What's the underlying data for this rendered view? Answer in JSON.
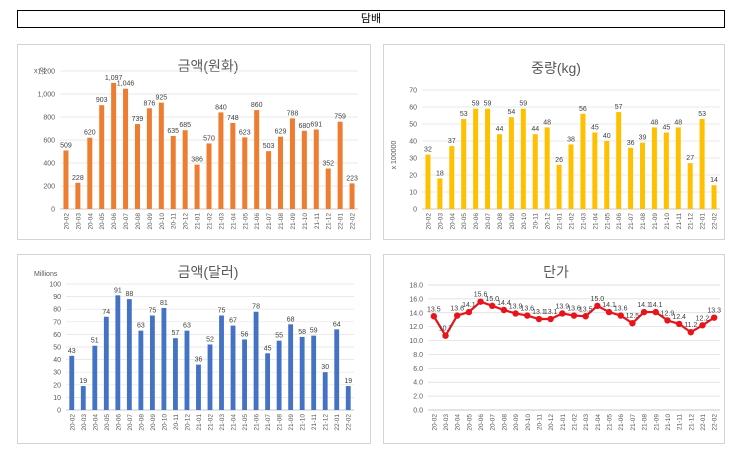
{
  "page_title": "담배",
  "categories": [
    "20-02",
    "20-03",
    "20-04",
    "20-05",
    "20-06",
    "20-07",
    "20-08",
    "20-09",
    "20-10",
    "20-11",
    "20-12",
    "21-01",
    "21-02",
    "21-03",
    "21-04",
    "21-05",
    "21-06",
    "21-07",
    "21-08",
    "21-09",
    "21-10",
    "21-11",
    "21-12",
    "22-01",
    "22-02"
  ],
  "chart_data": [
    {
      "type": "bar",
      "title": "금액(원화)",
      "unit_label": "x 억",
      "ylim": [
        0,
        1200
      ],
      "yticks": [
        "0",
        "200",
        "400",
        "600",
        "800",
        "1,000",
        "1,200"
      ],
      "color": "#ED7D31",
      "values": [
        509,
        228,
        620,
        903,
        1097,
        1046,
        739,
        876,
        925,
        635,
        685,
        386,
        570,
        840,
        748,
        623,
        860,
        503,
        629,
        788,
        680,
        691,
        352,
        759,
        223
      ],
      "data_labels": [
        "509",
        "228",
        "620",
        "903",
        "1,097",
        "1,046",
        "739",
        "876",
        "925",
        "635",
        "685",
        "386",
        "570",
        "840",
        "748",
        "623",
        "860",
        "503",
        "629",
        "788",
        "680",
        "691",
        "352",
        "759",
        "223"
      ]
    },
    {
      "type": "bar",
      "title": "중량(kg)",
      "unit_label": "x 100000",
      "ylim": [
        0,
        70
      ],
      "yticks": [
        "0",
        "10",
        "20",
        "30",
        "40",
        "50",
        "60",
        "70"
      ],
      "color": "#FFC000",
      "values": [
        32,
        18,
        37,
        53,
        59,
        59,
        44,
        54,
        59,
        44,
        48,
        26,
        38,
        56,
        45,
        40,
        57,
        36,
        39,
        48,
        45,
        48,
        27,
        53,
        14
      ],
      "data_labels": [
        "32",
        "18",
        "37",
        "53",
        "59",
        "59",
        "44",
        "54",
        "59",
        "44",
        "48",
        "26",
        "38",
        "56",
        "45",
        "40",
        "57",
        "36",
        "39",
        "48",
        "45",
        "48",
        "27",
        "53",
        "14"
      ]
    },
    {
      "type": "bar",
      "title": "금액(달러)",
      "unit_label": "Millions",
      "ylim": [
        0,
        100
      ],
      "yticks": [
        "0",
        "10",
        "20",
        "30",
        "40",
        "50",
        "60",
        "70",
        "80",
        "90",
        "100"
      ],
      "color": "#4472C4",
      "values": [
        43,
        19,
        51,
        74,
        91,
        88,
        63,
        75,
        81,
        57,
        63,
        36,
        52,
        75,
        67,
        56,
        78,
        45,
        55,
        68,
        58,
        59,
        30,
        64,
        19
      ],
      "data_labels": [
        "43",
        "19",
        "51",
        "74",
        "91",
        "88",
        "63",
        "75",
        "81",
        "57",
        "63",
        "36",
        "52",
        "75",
        "67",
        "56",
        "78",
        "45",
        "55",
        "68",
        "58",
        "59",
        "30",
        "64",
        "19"
      ]
    },
    {
      "type": "line",
      "title": "단가",
      "ylim": [
        0,
        18
      ],
      "yticks": [
        "0.0",
        "2.0",
        "4.0",
        "6.0",
        "8.0",
        "10.0",
        "12.0",
        "14.0",
        "16.0",
        "18.0"
      ],
      "color": "#E8141B",
      "values": [
        13.5,
        10.7,
        13.6,
        14.1,
        15.6,
        15.0,
        14.4,
        13.9,
        13.6,
        13.1,
        13.1,
        13.9,
        13.6,
        13.5,
        15.0,
        14.1,
        13.6,
        12.5,
        14.1,
        14.1,
        12.9,
        12.4,
        11.2,
        12.2,
        13.3
      ],
      "data_labels": [
        "13.5",
        "10.7",
        "13.6",
        "14.1",
        "15.6",
        "15.0",
        "14.4",
        "13.9",
        "13.6",
        "13.1",
        "13.1",
        "13.9",
        "13.6",
        "13.5",
        "15.0",
        "14.1",
        "13.6",
        "12.5",
        "14.1",
        "14.1",
        "12.9",
        "12.4",
        "11.2",
        "12.2",
        "13.3"
      ]
    }
  ]
}
